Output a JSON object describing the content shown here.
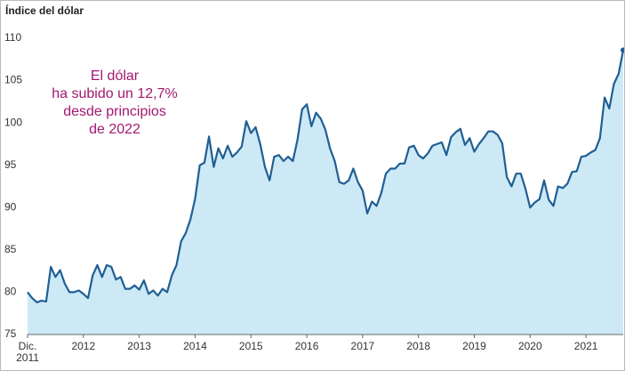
{
  "chart_data": {
    "type": "area",
    "title": "Índice del dólar",
    "annotation": [
      "El dólar",
      "ha subido un 12,7%",
      "desde principios",
      "de 2022"
    ],
    "color": "#1f5f94",
    "fill_color": "#cde9f6",
    "grid": false,
    "ylim": [
      75,
      110
    ],
    "yticks": [
      75,
      80,
      85,
      90,
      95,
      100,
      105,
      110
    ],
    "categories": [
      "Dic. 2011",
      null,
      null,
      null,
      null,
      null,
      null,
      null,
      null,
      null,
      null,
      null,
      "2012",
      null,
      null,
      null,
      null,
      null,
      null,
      null,
      null,
      null,
      null,
      null,
      "2013",
      null,
      null,
      null,
      null,
      null,
      null,
      null,
      null,
      null,
      null,
      null,
      "2014",
      null,
      null,
      null,
      null,
      null,
      null,
      null,
      null,
      null,
      null,
      null,
      "2015",
      null,
      null,
      null,
      null,
      null,
      null,
      null,
      null,
      null,
      null,
      null,
      "2016",
      null,
      null,
      null,
      null,
      null,
      null,
      null,
      null,
      null,
      null,
      null,
      "2017",
      null,
      null,
      null,
      null,
      null,
      null,
      null,
      null,
      null,
      null,
      null,
      "2018",
      null,
      null,
      null,
      null,
      null,
      null,
      null,
      null,
      null,
      null,
      null,
      "2019",
      null,
      null,
      null,
      null,
      null,
      null,
      null,
      null,
      null,
      null,
      null,
      "2020",
      null,
      null,
      null,
      null,
      null,
      null,
      null,
      null,
      null,
      null,
      null,
      "2021",
      null,
      null,
      null,
      null,
      null,
      null,
      null,
      null
    ],
    "values": [
      80.0,
      79.3,
      78.8,
      79.0,
      78.9,
      83.0,
      81.8,
      82.6,
      81.0,
      80.0,
      80.0,
      80.2,
      79.8,
      79.3,
      82.0,
      83.2,
      81.8,
      83.2,
      83.0,
      81.5,
      81.8,
      80.4,
      80.4,
      80.8,
      80.3,
      81.4,
      79.8,
      80.2,
      79.6,
      80.4,
      80.0,
      82.0,
      83.2,
      86.0,
      87.0,
      88.6,
      91.0,
      95.0,
      95.3,
      98.4,
      94.8,
      97.0,
      95.8,
      97.3,
      96.0,
      96.5,
      97.2,
      100.2,
      98.8,
      99.5,
      97.5,
      94.8,
      93.2,
      96.0,
      96.2,
      95.5,
      96.0,
      95.5,
      98.0,
      101.6,
      102.2,
      99.6,
      101.2,
      100.5,
      99.2,
      97.0,
      95.5,
      93.0,
      92.8,
      93.2,
      94.6,
      93.0,
      92.0,
      89.3,
      90.7,
      90.2,
      91.7,
      94.0,
      94.6,
      94.6,
      95.2,
      95.2,
      97.1,
      97.3,
      96.2,
      95.8,
      96.4,
      97.3,
      97.5,
      97.7,
      96.2,
      98.3,
      98.9,
      99.3,
      97.4,
      98.2,
      96.6,
      97.5,
      98.2,
      99.0,
      99.0,
      98.6,
      97.6,
      93.6,
      92.5,
      94.0,
      94.0,
      92.2,
      90.0,
      90.6,
      91.0,
      93.2,
      90.9,
      90.2,
      92.5,
      92.3,
      92.8,
      94.2,
      94.3,
      96.0,
      96.1,
      96.5,
      96.8,
      98.2,
      103.0,
      101.7,
      104.6,
      105.8,
      108.6
    ]
  }
}
